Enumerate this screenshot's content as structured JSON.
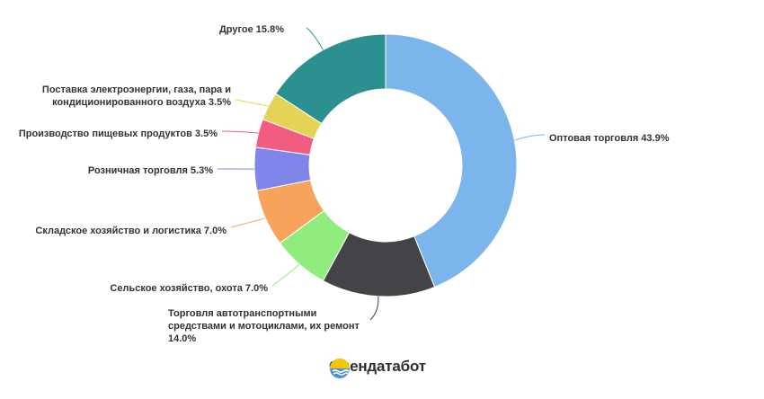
{
  "chart_data": {
    "type": "pie",
    "variant": "donut",
    "start_angle_deg": 0,
    "direction": "clockwise",
    "slices": [
      {
        "name": "Оптовая торговля",
        "value": 43.9,
        "label": "Оптовая торговля 43.9%",
        "color": "#7cb5ec"
      },
      {
        "name": "Торговля автотранспортными средствами и мотоциклами, их ремонт",
        "value": 14.0,
        "label_lines": [
          "Торговля автотранспортными",
          "средствами и мотоциклами, их ремонт",
          "14.0%"
        ],
        "color": "#434348"
      },
      {
        "name": "Сельское хозяйство, охота",
        "value": 7.0,
        "label": "Сельское хозяйство, охота 7.0%",
        "color": "#90ed7d"
      },
      {
        "name": "Складское хозяйство и логистика",
        "value": 7.0,
        "label": "Складское хозяйство и логистика 7.0%",
        "color": "#f7a35c"
      },
      {
        "name": "Розничная торговля",
        "value": 5.3,
        "label": "Розничная торговля 5.3%",
        "color": "#8085e9"
      },
      {
        "name": "Производство пищевых продуктов",
        "value": 3.5,
        "label": "Производство пищевых продуктов 3.5%",
        "color": "#f15c80"
      },
      {
        "name": "Поставка электроэнергии, газа, пара и кондиционированного воздуха",
        "value": 3.5,
        "label_lines": [
          "Поставка электроэнергии, газа, пара и",
          "кондиционированного воздуха 3.5%"
        ],
        "color": "#e4d354"
      },
      {
        "name": "Другое",
        "value": 15.8,
        "label": "Другое 15.8%",
        "color": "#2b908f"
      }
    ]
  },
  "brand": {
    "name": "Опендатабот",
    "logo_icon": "sun-over-waves-icon",
    "logo_colors": [
      "#f6c700",
      "#4a90d9"
    ]
  }
}
